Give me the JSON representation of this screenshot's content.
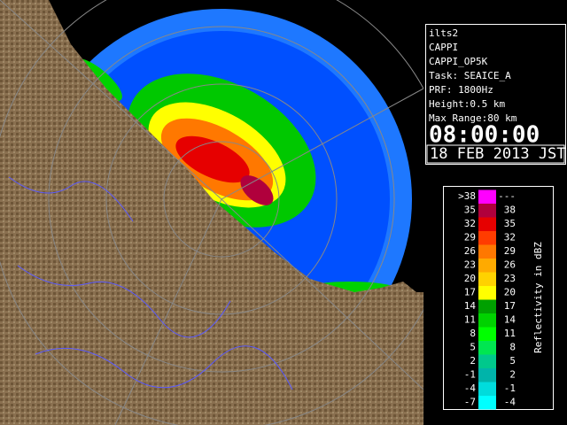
{
  "info": {
    "lines": [
      "ilts2",
      "CAPPI",
      "CAPPI_OP5K",
      "Task: SEAICE_A",
      "PRF: 1800Hz",
      "Height:0.5 km",
      "Max Range:80 km"
    ],
    "time": "08:00:00",
    "date": "18 FEB 2013 JST"
  },
  "legend": {
    "title": "Reflectivity in dBZ",
    "rows": [
      {
        "low": ">38",
        "high": "---",
        "color": "#ff00ff"
      },
      {
        "low": "35",
        "high": "38",
        "color": "#b0003c"
      },
      {
        "low": "32",
        "high": "35",
        "color": "#e60000"
      },
      {
        "low": "29",
        "high": "32",
        "color": "#ff3c00"
      },
      {
        "low": "26",
        "high": "29",
        "color": "#ff7800"
      },
      {
        "low": "23",
        "high": "26",
        "color": "#ffaa00"
      },
      {
        "low": "20",
        "high": "23",
        "color": "#ffd200"
      },
      {
        "low": "17",
        "high": "20",
        "color": "#ffff00"
      },
      {
        "low": "14",
        "high": "17",
        "color": "#00a000"
      },
      {
        "low": "11",
        "high": "14",
        "color": "#00d200"
      },
      {
        "low": "8",
        "high": "11",
        "color": "#00ff00"
      },
      {
        "low": "5",
        "high": "8",
        "color": "#00e650"
      },
      {
        "low": "2",
        "high": "5",
        "color": "#00c88c"
      },
      {
        "low": "-1",
        "high": "2",
        "color": "#00b4aa"
      },
      {
        "low": "-4",
        "high": "-1",
        "color": "#00dcdc"
      },
      {
        "low": "-7",
        "high": "-4",
        "color": "#00ffff"
      }
    ]
  }
}
